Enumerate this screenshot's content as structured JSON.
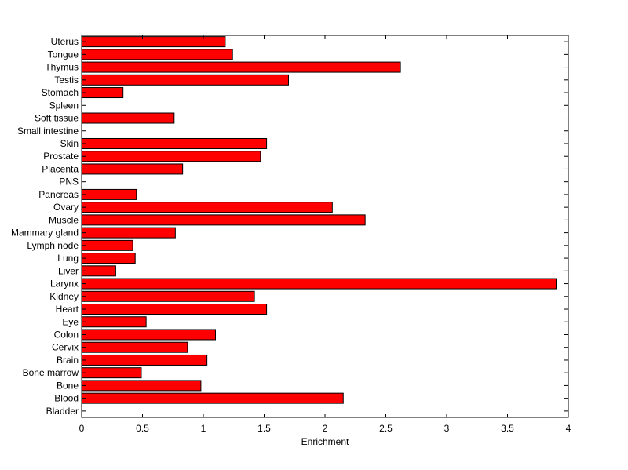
{
  "chart_data": {
    "type": "bar",
    "orientation": "horizontal",
    "title": "",
    "xlabel": "Enrichment",
    "ylabel": "",
    "xlim": [
      0,
      4
    ],
    "x_ticks": [
      "0",
      "0.5",
      "1",
      "1.5",
      "2",
      "2.5",
      "3",
      "3.5",
      "4"
    ],
    "grid": false,
    "legend": "none",
    "bar_color": "#ff0000",
    "categories": [
      "Bladder",
      "Blood",
      "Bone",
      "Bone marrow",
      "Brain",
      "Cervix",
      "Colon",
      "Eye",
      "Heart",
      "Kidney",
      "Larynx",
      "Liver",
      "Lung",
      "Lymph node",
      "Mammary gland",
      "Muscle",
      "Ovary",
      "Pancreas",
      "PNS",
      "Placenta",
      "Prostate",
      "Skin",
      "Small intestine",
      "Soft tissue",
      "Spleen",
      "Stomach",
      "Testis",
      "Thymus",
      "Tongue",
      "Uterus"
    ],
    "values": [
      0,
      2.15,
      0.98,
      0.49,
      1.03,
      0.87,
      1.1,
      0.53,
      1.52,
      1.42,
      3.9,
      0.28,
      0.44,
      0.42,
      0.77,
      2.33,
      2.06,
      0.45,
      0,
      0.83,
      1.47,
      1.52,
      0,
      0.76,
      0,
      0.34,
      1.7,
      2.62,
      1.24,
      1.18
    ]
  }
}
